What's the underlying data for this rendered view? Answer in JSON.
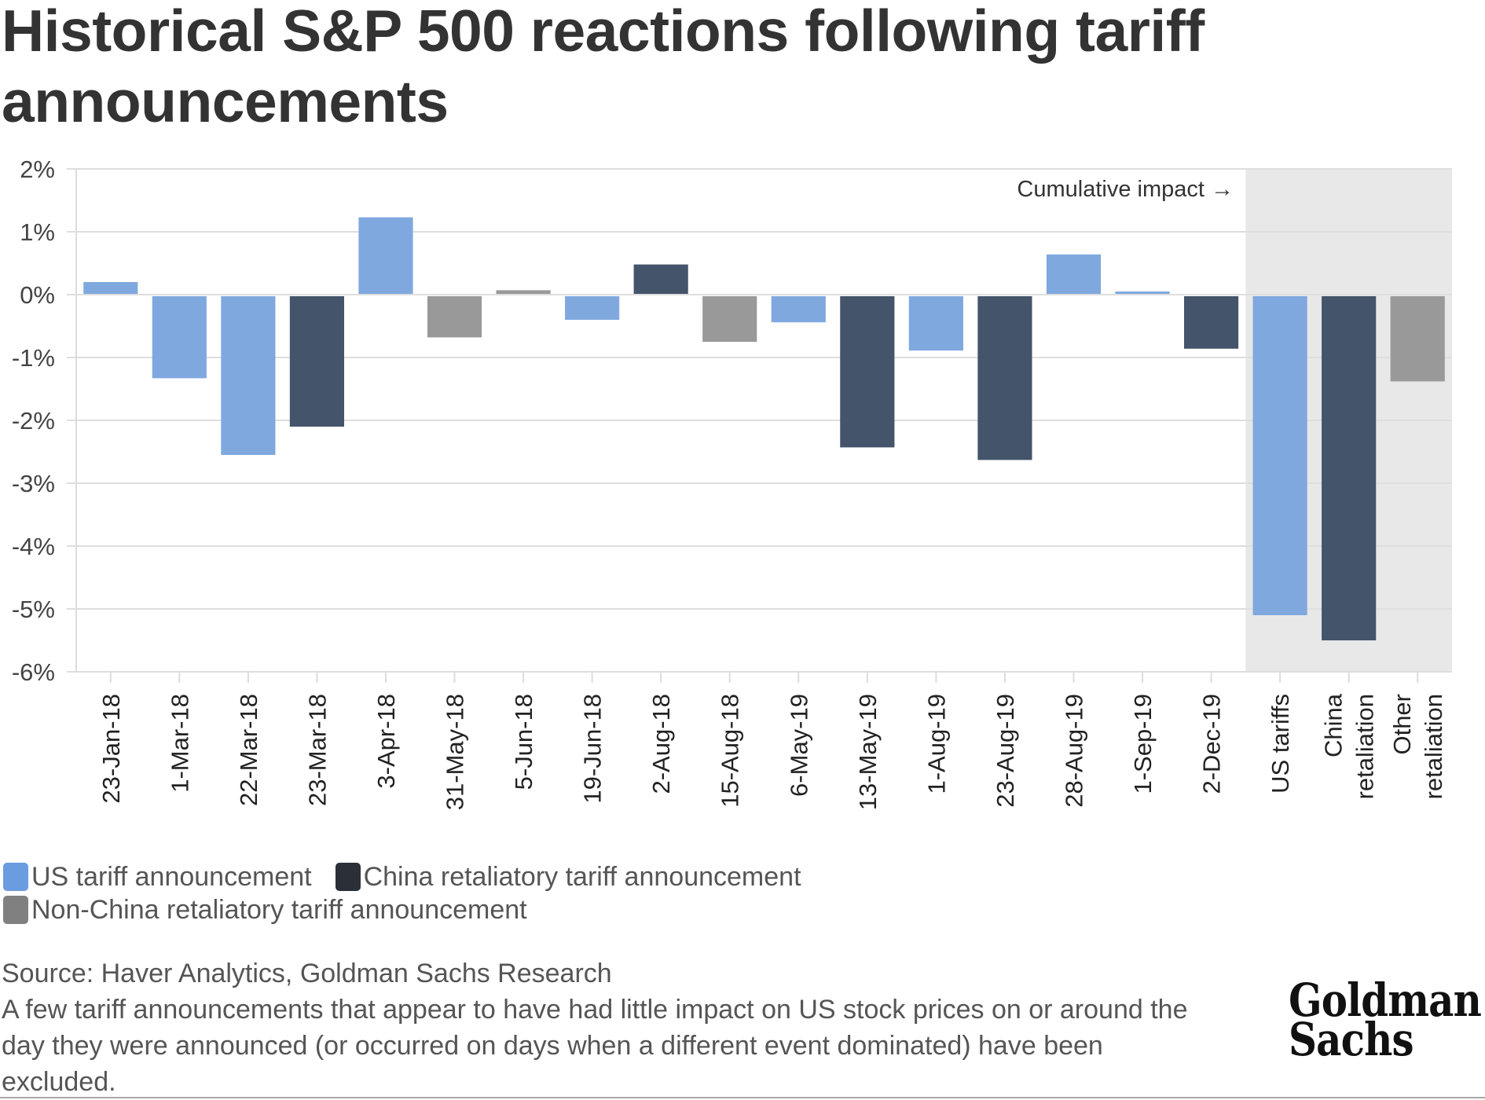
{
  "title": "Historical S&P 500 reactions following tariff announcements",
  "chart_data": {
    "type": "bar",
    "title": "Historical S&P 500 reactions following tariff announcements",
    "xlabel": "",
    "ylabel": "",
    "ylim": [
      -6,
      2
    ],
    "yticks": [
      2,
      1,
      0,
      -1,
      -2,
      -3,
      -4,
      -5,
      -6
    ],
    "ytick_labels": [
      "2%",
      "1%",
      "0%",
      "-1%",
      "-2%",
      "-3%",
      "-4%",
      "-5%",
      "-6%"
    ],
    "grid": true,
    "categories": [
      "23-Jan-18",
      "1-Mar-18",
      "22-Mar-18",
      "23-Mar-18",
      "3-Apr-18",
      "31-May-18",
      "5-Jun-18",
      "19-Jun-18",
      "2-Aug-18",
      "15-Aug-18",
      "6-May-19",
      "13-May-19",
      "1-Aug-19",
      "23-Aug-19",
      "28-Aug-19",
      "1-Sep-19",
      "2-Dec-19",
      "US tariffs",
      "China retaliation",
      "Other retaliation"
    ],
    "category_lines": [
      [
        "23-Jan-18"
      ],
      [
        "1-Mar-18"
      ],
      [
        "22-Mar-18"
      ],
      [
        "23-Mar-18"
      ],
      [
        "3-Apr-18"
      ],
      [
        "31-May-18"
      ],
      [
        "5-Jun-18"
      ],
      [
        "19-Jun-18"
      ],
      [
        "2-Aug-18"
      ],
      [
        "15-Aug-18"
      ],
      [
        "6-May-19"
      ],
      [
        "13-May-19"
      ],
      [
        "1-Aug-19"
      ],
      [
        "23-Aug-19"
      ],
      [
        "28-Aug-19"
      ],
      [
        "1-Sep-19"
      ],
      [
        "2-Dec-19"
      ],
      [
        "US tariffs"
      ],
      [
        "China",
        "retaliation"
      ],
      [
        "Other",
        "retaliation"
      ]
    ],
    "values": [
      0.2,
      -1.33,
      -2.55,
      -2.1,
      1.23,
      -0.68,
      0.07,
      -0.4,
      0.48,
      -0.75,
      -0.44,
      -2.43,
      -0.89,
      -2.63,
      0.64,
      0.05,
      -0.86,
      -5.1,
      -5.5,
      -1.38
    ],
    "series_type": [
      "us",
      "us",
      "us",
      "china",
      "us",
      "other",
      "other",
      "us",
      "china",
      "other",
      "us",
      "china",
      "us",
      "china",
      "us",
      "us",
      "china",
      "us",
      "china",
      "other"
    ],
    "series": [
      {
        "key": "us",
        "name": "US tariff announcement",
        "color": "#7fa8df"
      },
      {
        "key": "china",
        "name": "China retaliatory tariff announcement",
        "color": "#44546a"
      },
      {
        "key": "other",
        "name": "Non-China retaliatory tariff announcement",
        "color": "#999999"
      }
    ],
    "cumulative_start_index": 17,
    "annotation": "Cumulative impact →",
    "legend_position": "bottom-left",
    "shaded_region_color": "#e8e8e8"
  },
  "legend": {
    "items": [
      {
        "label": "US tariff announcement",
        "color": "#6a9ce0"
      },
      {
        "label": "China retaliatory tariff announcement",
        "color": "#2b2f38"
      },
      {
        "label": "Non-China retaliatory tariff announcement",
        "color": "#808080"
      }
    ]
  },
  "footer": {
    "source": "Source: Haver Analytics, Goldman Sachs Research",
    "note": "A few tariff announcements that appear to have had little impact on US stock prices on or around the day they were announced (or occurred on days when a different event dominated) have been excluded."
  },
  "logo": {
    "line1": "Goldman",
    "line2": "Sachs"
  }
}
